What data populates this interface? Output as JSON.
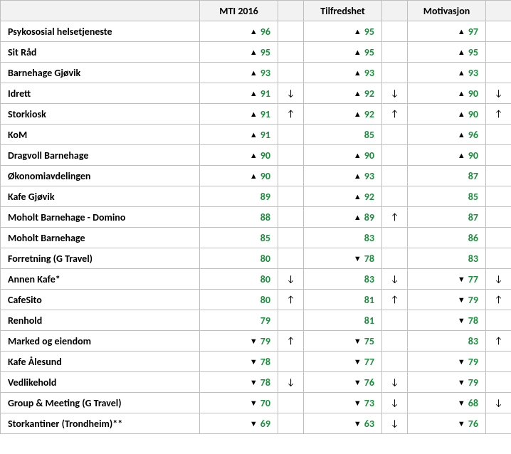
{
  "colors": {
    "green": "#1a8f3c",
    "black": "#000000",
    "header_bg": "#f2f2f2",
    "border": "#bfbfbf"
  },
  "shapes": {
    "up": "▲",
    "down": "▼"
  },
  "trends": {
    "up": "↑",
    "down": "↓"
  },
  "columns": [
    {
      "label": ""
    },
    {
      "label": "MTI 2016"
    },
    {
      "label": ""
    },
    {
      "label": "Tilfredshet"
    },
    {
      "label": ""
    },
    {
      "label": "Motivasjon"
    },
    {
      "label": ""
    }
  ],
  "rows": [
    {
      "label": "Psykososial helsetjeneste",
      "mti": {
        "v": 96,
        "s": "up",
        "c": "green"
      },
      "mti_t": "",
      "til": {
        "v": 95,
        "s": "up",
        "c": "green"
      },
      "til_t": "",
      "mot": {
        "v": 97,
        "s": "up",
        "c": "green"
      },
      "mot_t": ""
    },
    {
      "label": "Sit Råd",
      "mti": {
        "v": 95,
        "s": "up",
        "c": "green"
      },
      "mti_t": "",
      "til": {
        "v": 95,
        "s": "up",
        "c": "green"
      },
      "til_t": "",
      "mot": {
        "v": 95,
        "s": "up",
        "c": "green"
      },
      "mot_t": ""
    },
    {
      "label": "Barnehage Gjøvik",
      "mti": {
        "v": 93,
        "s": "up",
        "c": "green"
      },
      "mti_t": "",
      "til": {
        "v": 93,
        "s": "up",
        "c": "green"
      },
      "til_t": "",
      "mot": {
        "v": 93,
        "s": "up",
        "c": "green"
      },
      "mot_t": ""
    },
    {
      "label": "Idrett",
      "mti": {
        "v": 91,
        "s": "up",
        "c": "green"
      },
      "mti_t": "down",
      "til": {
        "v": 92,
        "s": "up",
        "c": "green"
      },
      "til_t": "down",
      "mot": {
        "v": 90,
        "s": "up",
        "c": "green"
      },
      "mot_t": "down"
    },
    {
      "label": "Storkiosk",
      "mti": {
        "v": 91,
        "s": "up",
        "c": "green"
      },
      "mti_t": "up",
      "til": {
        "v": 92,
        "s": "up",
        "c": "green"
      },
      "til_t": "up",
      "mot": {
        "v": 90,
        "s": "up",
        "c": "green"
      },
      "mot_t": "up"
    },
    {
      "label": "KoM",
      "mti": {
        "v": 91,
        "s": "up",
        "c": "green"
      },
      "mti_t": "",
      "til": {
        "v": 85,
        "s": "",
        "c": "green"
      },
      "til_t": "",
      "mot": {
        "v": 96,
        "s": "up",
        "c": "green"
      },
      "mot_t": ""
    },
    {
      "label": "Dragvoll Barnehage",
      "mti": {
        "v": 90,
        "s": "up",
        "c": "green"
      },
      "mti_t": "",
      "til": {
        "v": 90,
        "s": "up",
        "c": "green"
      },
      "til_t": "",
      "mot": {
        "v": 90,
        "s": "up",
        "c": "green"
      },
      "mot_t": ""
    },
    {
      "label": "Økonomiavdelingen",
      "mti": {
        "v": 90,
        "s": "up",
        "c": "green"
      },
      "mti_t": "",
      "til": {
        "v": 93,
        "s": "up",
        "c": "green"
      },
      "til_t": "",
      "mot": {
        "v": 87,
        "s": "",
        "c": "green"
      },
      "mot_t": ""
    },
    {
      "label": "Kafe Gjøvik",
      "mti": {
        "v": 89,
        "s": "",
        "c": "green"
      },
      "mti_t": "",
      "til": {
        "v": 92,
        "s": "up",
        "c": "green"
      },
      "til_t": "",
      "mot": {
        "v": 85,
        "s": "",
        "c": "green"
      },
      "mot_t": ""
    },
    {
      "label": "Moholt Barnehage - Domino",
      "mti": {
        "v": 88,
        "s": "",
        "c": "green"
      },
      "mti_t": "",
      "til": {
        "v": 89,
        "s": "up",
        "c": "green"
      },
      "til_t": "up",
      "mot": {
        "v": 87,
        "s": "",
        "c": "green"
      },
      "mot_t": ""
    },
    {
      "label": "Moholt Barnehage",
      "mti": {
        "v": 85,
        "s": "",
        "c": "green"
      },
      "mti_t": "",
      "til": {
        "v": 83,
        "s": "",
        "c": "green"
      },
      "til_t": "",
      "mot": {
        "v": 86,
        "s": "",
        "c": "green"
      },
      "mot_t": ""
    },
    {
      "label": "Forretning (G Travel)",
      "mti": {
        "v": 80,
        "s": "",
        "c": "green"
      },
      "mti_t": "",
      "til": {
        "v": 78,
        "s": "down",
        "c": "green"
      },
      "til_t": "",
      "mot": {
        "v": 83,
        "s": "",
        "c": "green"
      },
      "mot_t": ""
    },
    {
      "label": "Annen Kafe*",
      "mti": {
        "v": 80,
        "s": "",
        "c": "green"
      },
      "mti_t": "down",
      "til": {
        "v": 83,
        "s": "",
        "c": "green"
      },
      "til_t": "down",
      "mot": {
        "v": 77,
        "s": "down",
        "c": "green"
      },
      "mot_t": "down"
    },
    {
      "label": "CafeSito",
      "mti": {
        "v": 80,
        "s": "",
        "c": "green"
      },
      "mti_t": "up",
      "til": {
        "v": 81,
        "s": "",
        "c": "green"
      },
      "til_t": "up",
      "mot": {
        "v": 79,
        "s": "down",
        "c": "green"
      },
      "mot_t": "up"
    },
    {
      "label": "Renhold",
      "mti": {
        "v": 79,
        "s": "",
        "c": "green"
      },
      "mti_t": "",
      "til": {
        "v": 81,
        "s": "",
        "c": "green"
      },
      "til_t": "",
      "mot": {
        "v": 78,
        "s": "down",
        "c": "green"
      },
      "mot_t": ""
    },
    {
      "label": "Marked og eiendom",
      "mti": {
        "v": 79,
        "s": "down",
        "c": "green"
      },
      "mti_t": "up",
      "til": {
        "v": 75,
        "s": "down",
        "c": "green"
      },
      "til_t": "",
      "mot": {
        "v": 83,
        "s": "",
        "c": "green"
      },
      "mot_t": "up"
    },
    {
      "label": "Kafe Ålesund",
      "mti": {
        "v": 78,
        "s": "down",
        "c": "green"
      },
      "mti_t": "",
      "til": {
        "v": 77,
        "s": "down",
        "c": "green"
      },
      "til_t": "",
      "mot": {
        "v": 79,
        "s": "down",
        "c": "green"
      },
      "mot_t": ""
    },
    {
      "label": "Vedlikehold",
      "mti": {
        "v": 78,
        "s": "down",
        "c": "green"
      },
      "mti_t": "down",
      "til": {
        "v": 76,
        "s": "down",
        "c": "green"
      },
      "til_t": "down",
      "mot": {
        "v": 79,
        "s": "down",
        "c": "green"
      },
      "mot_t": ""
    },
    {
      "label": "Group & Meeting (G Travel)",
      "mti": {
        "v": 70,
        "s": "down",
        "c": "green"
      },
      "mti_t": "",
      "til": {
        "v": 73,
        "s": "down",
        "c": "green"
      },
      "til_t": "down",
      "mot": {
        "v": 68,
        "s": "down",
        "c": "green"
      },
      "mot_t": "down"
    },
    {
      "label": "Storkantiner (Trondheim)**",
      "mti": {
        "v": 69,
        "s": "down",
        "c": "green"
      },
      "mti_t": "",
      "til": {
        "v": 63,
        "s": "down",
        "c": "green"
      },
      "til_t": "down",
      "mot": {
        "v": 76,
        "s": "down",
        "c": "green"
      },
      "mot_t": ""
    }
  ]
}
